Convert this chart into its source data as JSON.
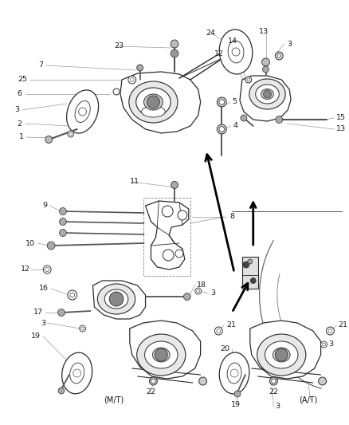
{
  "bg_color": "#f5f5f5",
  "line_color": "#2a2a2a",
  "figsize": [
    4.38,
    5.33
  ],
  "dpi": 100,
  "xlim": [
    0,
    438
  ],
  "ylim": [
    0,
    533
  ]
}
